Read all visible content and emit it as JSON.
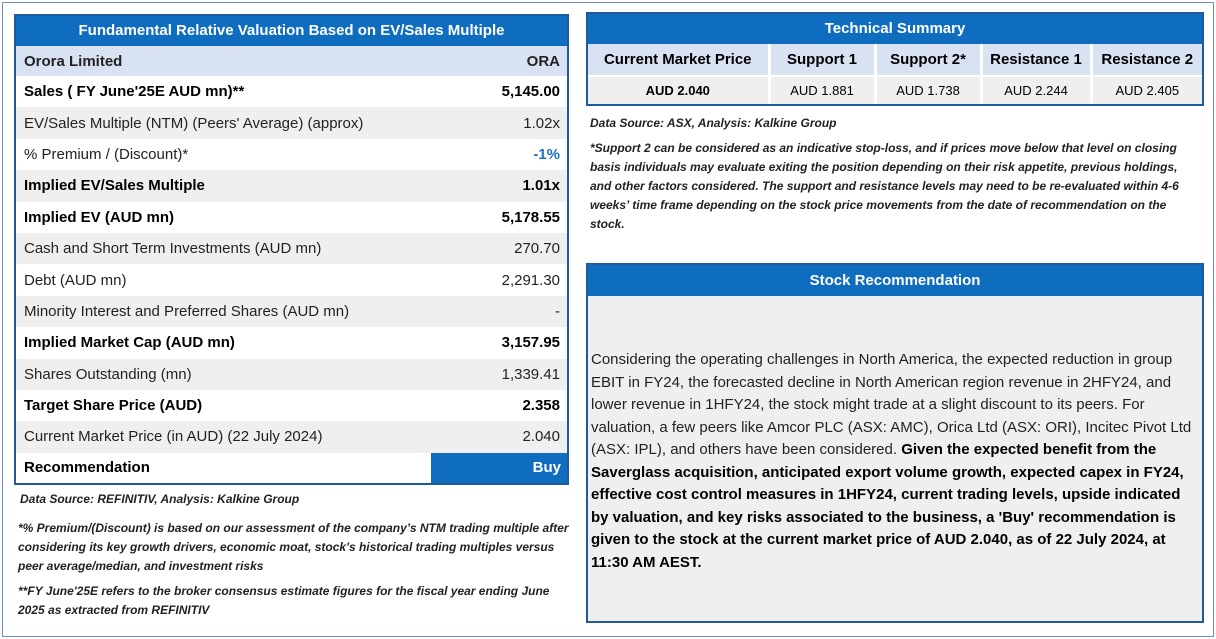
{
  "valuation": {
    "title": "Fundamental Relative Valuation Based on EV/Sales Multiple",
    "company": "Orora Limited",
    "ticker": "ORA",
    "rows": [
      {
        "label": "Sales ( FY June'25E AUD mn)**",
        "value": "5,145.00"
      },
      {
        "label": "EV/Sales Multiple (NTM)  (Peers' Average) (approx)",
        "value": "1.02x"
      },
      {
        "label": "% Premium / (Discount)*",
        "value": "-1%"
      },
      {
        "label": "Implied EV/Sales Multiple",
        "value": "1.01x"
      },
      {
        "label": "Implied EV (AUD mn)",
        "value": "5,178.55"
      },
      {
        "label": "Cash and Short Term Investments (AUD mn)",
        "value": "270.70"
      },
      {
        "label": "Debt (AUD mn)",
        "value": "2,291.30"
      },
      {
        "label": "Minority Interest and Preferred Shares (AUD mn)",
        "value": "-"
      },
      {
        "label": "Implied Market Cap (AUD mn)",
        "value": "3,157.95"
      },
      {
        "label": "Shares Outstanding (mn)",
        "value": "1,339.41"
      },
      {
        "label": "Target Share Price (AUD)",
        "value": "2.358"
      },
      {
        "label": "Current Market Price (in AUD) (22 July 2024)",
        "value": "2.040"
      }
    ],
    "recommendation_label": "Recommendation",
    "recommendation_value": "Buy",
    "source": "Data Source: REFINITIV, Analysis: Kalkine Group",
    "note1": "*% Premium/(Discount) is based on our assessment of the company’s NTM trading multiple after considering its key growth drivers, economic moat, stock's historical trading multiples versus peer average/median, and investment risks",
    "note2": "**FY June'25E refers to the broker consensus estimate figures for the fiscal year ending June 2025 as extracted from REFINITIV"
  },
  "technical": {
    "title": "Technical Summary",
    "headers": [
      "Current Market Price",
      "Support 1",
      "Support 2*",
      "Resistance 1",
      "Resistance 2"
    ],
    "values": [
      "AUD 2.040",
      "AUD 1.881",
      "AUD 1.738",
      "AUD 2.244",
      "AUD 2.405"
    ],
    "source": "Data Source: ASX, Analysis: Kalkine Group",
    "note": "*Support 2 can be considered as an indicative stop-loss, and if prices move below that level on closing basis individuals may evaluate exiting the position depending on their risk appetite, previous holdings, and other factors considered. The support and resistance levels may need to be re-evaluated within 4-6 weeks’ time frame depending on the stock price movements from the date of recommendation on the stock."
  },
  "stock_recommendation": {
    "title": "Stock Recommendation",
    "text_plain": "Considering the operating challenges in North America, the expected reduction in group EBIT in FY24, the forecasted decline in North American region revenue in 2HFY24, and lower revenue in 1HFY24, the stock might trade at a slight discount to its peers. For valuation, a few peers like Amcor PLC (ASX: AMC), Orica Ltd (ASX: ORI), Incitec Pivot Ltd (ASX: IPL), and others have been considered.",
    "text_bold": "Given the expected benefit from the Saverglass acquisition, anticipated export volume growth, expected capex in FY24, effective cost control measures in 1HFY24, current trading levels, upside indicated by valuation, and key risks associated to the business, a 'Buy' recommendation is given to the stock at the current market price of AUD 2.040, as of 22 July 2024, at 11:30 AM AEST."
  },
  "colors": {
    "header_blue": "#0f6dbf",
    "border_blue": "#1f5a9c",
    "subhead_bg": "#d9e2f3",
    "stripe_grey": "#efefef",
    "negative_blue": "#1c72c4"
  }
}
